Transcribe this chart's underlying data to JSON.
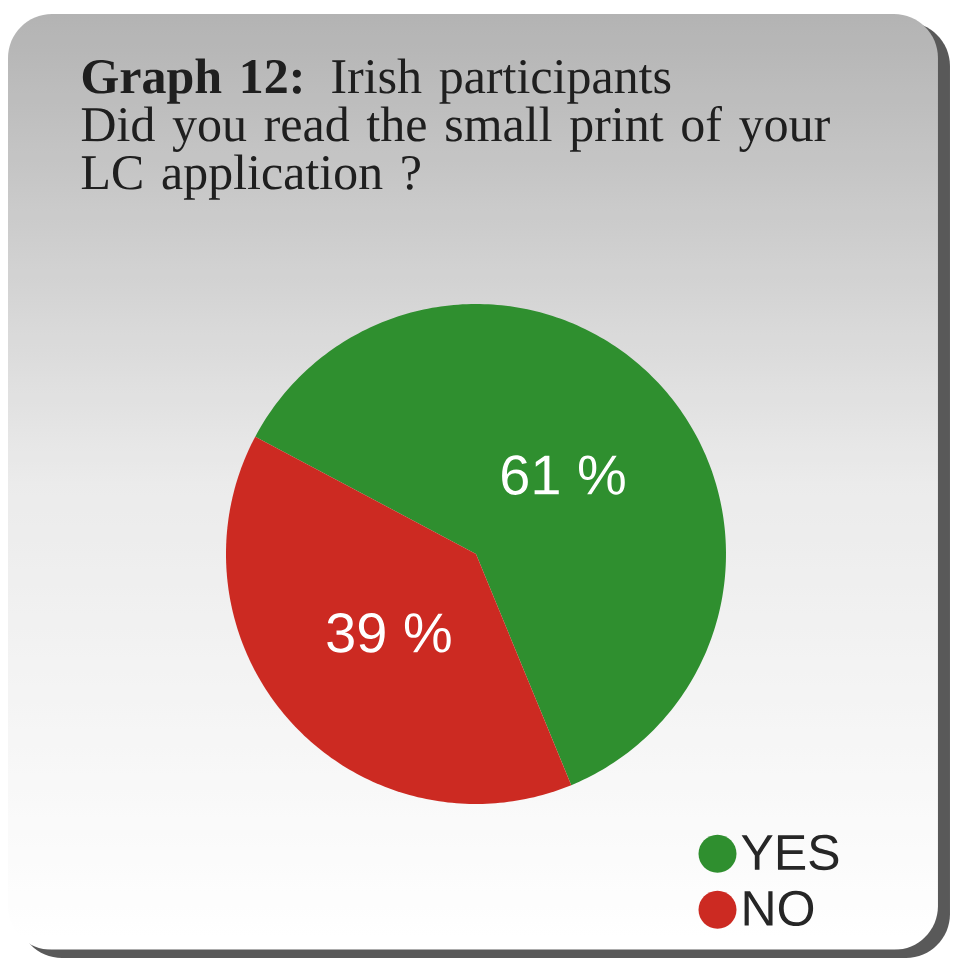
{
  "chart_data": {
    "type": "pie",
    "title": "**Graph 12:** Irish participants",
    "subtitle": "Did you read the small print of your LC application ?",
    "categories": [
      "YES",
      "NO"
    ],
    "values": [
      61,
      39
    ],
    "colors": [
      "#2f8f2f",
      "#cc2a22"
    ],
    "value_labels": [
      "61 %",
      "39 %"
    ],
    "legend": "bottom right"
  }
}
